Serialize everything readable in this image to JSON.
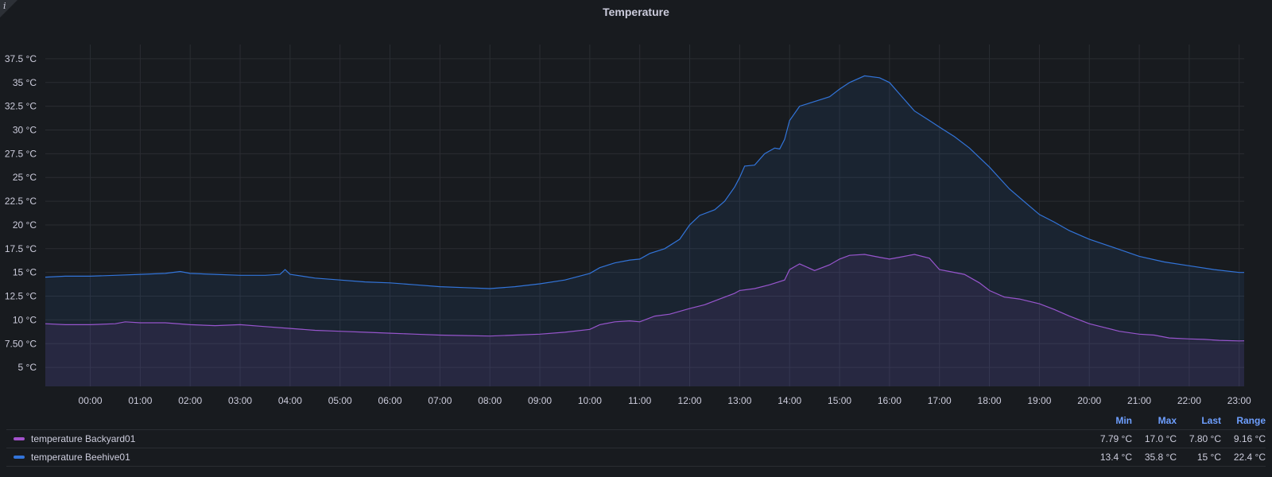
{
  "panel": {
    "title": "Temperature",
    "info_icon": "info-icon"
  },
  "chart_data": {
    "type": "area",
    "title": "Temperature",
    "xlabel": "",
    "ylabel": "",
    "unit": "°C",
    "x_range_hours": [
      -0.9,
      23.1
    ],
    "ylim": [
      3.0,
      39.0
    ],
    "x_ticks": [
      "00:00",
      "01:00",
      "02:00",
      "03:00",
      "04:00",
      "05:00",
      "06:00",
      "07:00",
      "08:00",
      "09:00",
      "10:00",
      "11:00",
      "12:00",
      "13:00",
      "14:00",
      "15:00",
      "16:00",
      "17:00",
      "18:00",
      "19:00",
      "20:00",
      "21:00",
      "22:00",
      "23:00"
    ],
    "y_ticks": [
      {
        "value": 5,
        "label": "5 °C"
      },
      {
        "value": 7.5,
        "label": "7.50 °C"
      },
      {
        "value": 10,
        "label": "10 °C"
      },
      {
        "value": 12.5,
        "label": "12.5 °C"
      },
      {
        "value": 15,
        "label": "15 °C"
      },
      {
        "value": 17.5,
        "label": "17.5 °C"
      },
      {
        "value": 20,
        "label": "20 °C"
      },
      {
        "value": 22.5,
        "label": "22.5 °C"
      },
      {
        "value": 25,
        "label": "25 °C"
      },
      {
        "value": 27.5,
        "label": "27.5 °C"
      },
      {
        "value": 30,
        "label": "30 °C"
      },
      {
        "value": 32.5,
        "label": "32.5 °C"
      },
      {
        "value": 35,
        "label": "35 °C"
      },
      {
        "value": 37.5,
        "label": "37.5 °C"
      }
    ],
    "grid": true,
    "legend_position": "bottom",
    "series": [
      {
        "name": "temperature Backyard01",
        "color": "#a352cc",
        "x": [
          -0.9,
          -0.5,
          0,
          0.5,
          0.7,
          1,
          1.5,
          2,
          2.5,
          3,
          3.5,
          4,
          4.5,
          5,
          5.5,
          6,
          6.5,
          7,
          7.5,
          8,
          8.5,
          9,
          9.5,
          10,
          10.2,
          10.5,
          10.8,
          11,
          11.3,
          11.6,
          12,
          12.3,
          12.6,
          12.9,
          13,
          13.3,
          13.6,
          13.9,
          14,
          14.2,
          14.5,
          14.8,
          15,
          15.2,
          15.5,
          15.8,
          16,
          16.2,
          16.5,
          16.8,
          17,
          17.2,
          17.5,
          17.8,
          18,
          18.3,
          18.6,
          19,
          19.3,
          19.6,
          20,
          20.3,
          20.6,
          21,
          21.3,
          21.6,
          22,
          22.3,
          22.6,
          23,
          23.1
        ],
        "y": [
          9.6,
          9.5,
          9.5,
          9.6,
          9.8,
          9.7,
          9.7,
          9.5,
          9.4,
          9.5,
          9.3,
          9.1,
          8.9,
          8.8,
          8.7,
          8.6,
          8.5,
          8.4,
          8.35,
          8.3,
          8.4,
          8.5,
          8.7,
          9.0,
          9.5,
          9.8,
          9.9,
          9.8,
          10.4,
          10.6,
          11.2,
          11.6,
          12.2,
          12.8,
          13.1,
          13.3,
          13.7,
          14.2,
          15.3,
          15.9,
          15.2,
          15.8,
          16.4,
          16.8,
          16.9,
          16.6,
          16.4,
          16.6,
          16.9,
          16.5,
          15.3,
          15.1,
          14.8,
          13.9,
          13.1,
          12.4,
          12.2,
          11.7,
          11.1,
          10.4,
          9.6,
          9.2,
          8.8,
          8.5,
          8.4,
          8.1,
          8.0,
          7.95,
          7.85,
          7.79,
          7.8
        ]
      },
      {
        "name": "temperature Beehive01",
        "color": "#3274d9",
        "x": [
          -0.9,
          -0.5,
          0,
          0.5,
          1,
          1.5,
          1.8,
          2,
          2.5,
          3,
          3.5,
          3.8,
          3.9,
          4,
          4.5,
          5,
          5.5,
          6,
          6.5,
          7,
          7.5,
          8,
          8.5,
          9,
          9.5,
          10,
          10.2,
          10.5,
          10.8,
          11,
          11.2,
          11.5,
          11.8,
          12,
          12.2,
          12.5,
          12.7,
          12.9,
          13,
          13.1,
          13.3,
          13.5,
          13.7,
          13.8,
          13.9,
          14,
          14.2,
          14.5,
          14.8,
          15,
          15.2,
          15.5,
          15.8,
          16,
          16.2,
          16.5,
          16.8,
          17,
          17.3,
          17.6,
          18,
          18.4,
          18.8,
          19,
          19.3,
          19.6,
          20,
          20.5,
          21,
          21.5,
          22,
          22.5,
          23,
          23.1
        ],
        "y": [
          14.5,
          14.6,
          14.6,
          14.7,
          14.8,
          14.9,
          15.1,
          14.9,
          14.8,
          14.7,
          14.7,
          14.8,
          15.3,
          14.8,
          14.4,
          14.2,
          14.0,
          13.9,
          13.7,
          13.5,
          13.4,
          13.3,
          13.5,
          13.8,
          14.2,
          14.9,
          15.5,
          16.0,
          16.3,
          16.4,
          17.0,
          17.5,
          18.5,
          20.0,
          21.0,
          21.6,
          22.5,
          24.0,
          25.0,
          26.2,
          26.3,
          27.5,
          28.1,
          28.0,
          29.0,
          31.0,
          32.5,
          33.0,
          33.5,
          34.3,
          35.0,
          35.7,
          35.5,
          35.0,
          33.8,
          32.0,
          31.0,
          30.3,
          29.3,
          28.1,
          26.1,
          23.8,
          22.0,
          21.1,
          20.3,
          19.4,
          18.5,
          17.6,
          16.7,
          16.1,
          15.7,
          15.3,
          15.0,
          15.0
        ]
      }
    ]
  },
  "legend": {
    "headers": [
      "Min",
      "Max",
      "Last",
      "Range"
    ],
    "rows": [
      {
        "name": "temperature Backyard01",
        "color": "#a352cc",
        "min": "7.79 °C",
        "max": "17.0 °C",
        "last": "7.80 °C",
        "range": "9.16 °C"
      },
      {
        "name": "temperature Beehive01",
        "color": "#3274d9",
        "min": "13.4 °C",
        "max": "35.8 °C",
        "last": "15 °C",
        "range": "22.4 °C"
      }
    ]
  }
}
